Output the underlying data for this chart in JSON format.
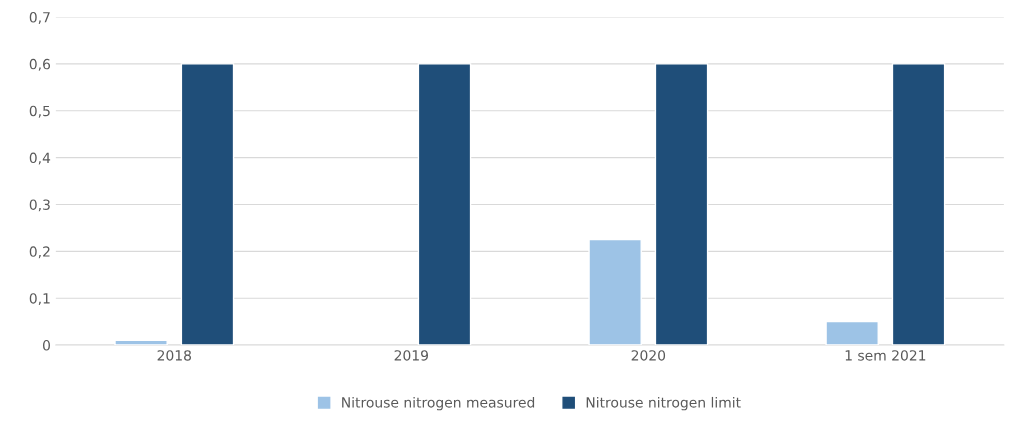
{
  "chart_data": {
    "type": "bar",
    "categories": [
      "2018",
      "2019",
      "2020",
      "1 sem 2021"
    ],
    "series": [
      {
        "name": "Nitrouse nitrogen measured",
        "color": "#9dc3e6",
        "values": [
          0.01,
          null,
          0.225,
          0.05
        ]
      },
      {
        "name": "Nitrouse nitrogen limit",
        "color": "#1f4e79",
        "values": [
          0.6,
          0.6,
          0.6,
          0.6
        ]
      }
    ],
    "ylim": [
      0,
      0.7
    ],
    "yticks": [
      0,
      {
        "value": 0.1,
        "label": "0,1"
      },
      {
        "value": 0.2,
        "label": "0,2"
      },
      {
        "value": 0.3,
        "label": "0,3"
      },
      {
        "value": 0.4,
        "label": "0,4"
      },
      {
        "value": 0.5,
        "label": "0,5"
      },
      {
        "value": 0.6,
        "label": "0,6"
      },
      {
        "value": 0.7,
        "label": "0,7"
      }
    ],
    "grid": "y",
    "legend": "bottom"
  }
}
